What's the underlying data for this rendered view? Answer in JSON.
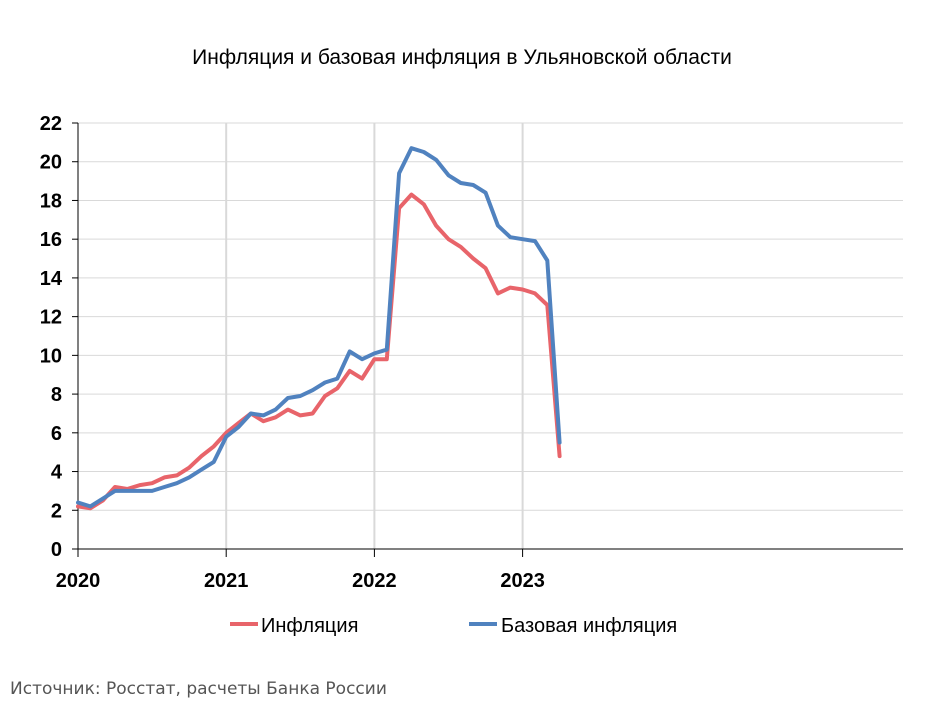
{
  "source_note": "Источник: Росстат, расчеты Банка России",
  "colors": {
    "inflation": "#e8646a",
    "core": "#5082bf",
    "grid": "#d9d9d9",
    "axis": "#000000"
  },
  "chart_data": {
    "type": "line",
    "title": "Инфляция и базовая инфляция в Ульяновской области",
    "xlabel": "",
    "ylabel": "",
    "ylim": [
      0,
      22
    ],
    "yticks": [
      0,
      2,
      4,
      6,
      8,
      10,
      12,
      14,
      16,
      18,
      20,
      22
    ],
    "xticks": [
      "2020",
      "2021",
      "2022",
      "2023"
    ],
    "grid": true,
    "legend_position": "bottom",
    "x": [
      "2020-01",
      "2020-02",
      "2020-03",
      "2020-04",
      "2020-05",
      "2020-06",
      "2020-07",
      "2020-08",
      "2020-09",
      "2020-10",
      "2020-11",
      "2020-12",
      "2021-01",
      "2021-02",
      "2021-03",
      "2021-04",
      "2021-05",
      "2021-06",
      "2021-07",
      "2021-08",
      "2021-09",
      "2021-10",
      "2021-11",
      "2021-12",
      "2022-01",
      "2022-02",
      "2022-03",
      "2022-04",
      "2022-05",
      "2022-06",
      "2022-07",
      "2022-08",
      "2022-09",
      "2022-10",
      "2022-11",
      "2022-12",
      "2023-01",
      "2023-02",
      "2023-03",
      "2023-04"
    ],
    "series": [
      {
        "name": "Инфляция",
        "values": [
          2.2,
          2.1,
          2.5,
          3.2,
          3.1,
          3.3,
          3.4,
          3.7,
          3.8,
          4.2,
          4.8,
          5.3,
          6.0,
          6.5,
          7.0,
          6.6,
          6.8,
          7.2,
          6.9,
          7.0,
          7.9,
          8.3,
          9.2,
          8.8,
          9.8,
          9.8,
          17.6,
          18.3,
          17.8,
          16.7,
          16.0,
          15.6,
          15.0,
          14.5,
          13.2,
          13.5,
          13.4,
          13.2,
          12.6,
          4.8
        ]
      },
      {
        "name": "Базовая инфляция",
        "values": [
          2.4,
          2.2,
          2.6,
          3.0,
          3.0,
          3.0,
          3.0,
          3.2,
          3.4,
          3.7,
          4.1,
          4.5,
          5.8,
          6.3,
          7.0,
          6.9,
          7.2,
          7.8,
          7.9,
          8.2,
          8.6,
          8.8,
          10.2,
          9.8,
          10.1,
          10.3,
          19.4,
          20.7,
          20.5,
          20.1,
          19.3,
          18.9,
          18.8,
          18.4,
          16.7,
          16.1,
          16.0,
          15.9,
          14.9,
          5.5
        ]
      }
    ]
  }
}
